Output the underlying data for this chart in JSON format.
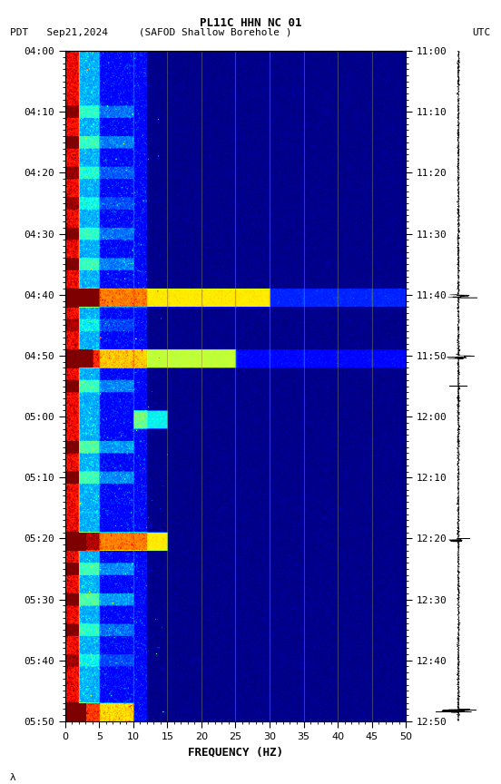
{
  "title_line1": "PL11C HHN NC 01",
  "title_line2_left": "PDT   Sep21,2024     (SAFOD Shallow Borehole )",
  "title_line2_right": "UTC",
  "xlabel": "FREQUENCY (HZ)",
  "freq_min": 0,
  "freq_max": 50,
  "pdt_ticks": [
    "04:00",
    "04:10",
    "04:20",
    "04:30",
    "04:40",
    "04:50",
    "05:00",
    "05:10",
    "05:20",
    "05:30",
    "05:40",
    "05:50"
  ],
  "utc_ticks": [
    "11:00",
    "11:10",
    "11:20",
    "11:30",
    "11:40",
    "11:50",
    "12:00",
    "12:10",
    "12:20",
    "12:30",
    "12:40",
    "12:50"
  ],
  "spectrogram_bg": "#00008B",
  "vertical_line_color": "#808040",
  "vertical_line_positions": [
    5,
    10,
    15,
    20,
    25,
    30,
    35,
    40,
    45
  ],
  "colormap": "jet",
  "fig_width": 5.52,
  "fig_height": 8.64,
  "dpi": 100
}
